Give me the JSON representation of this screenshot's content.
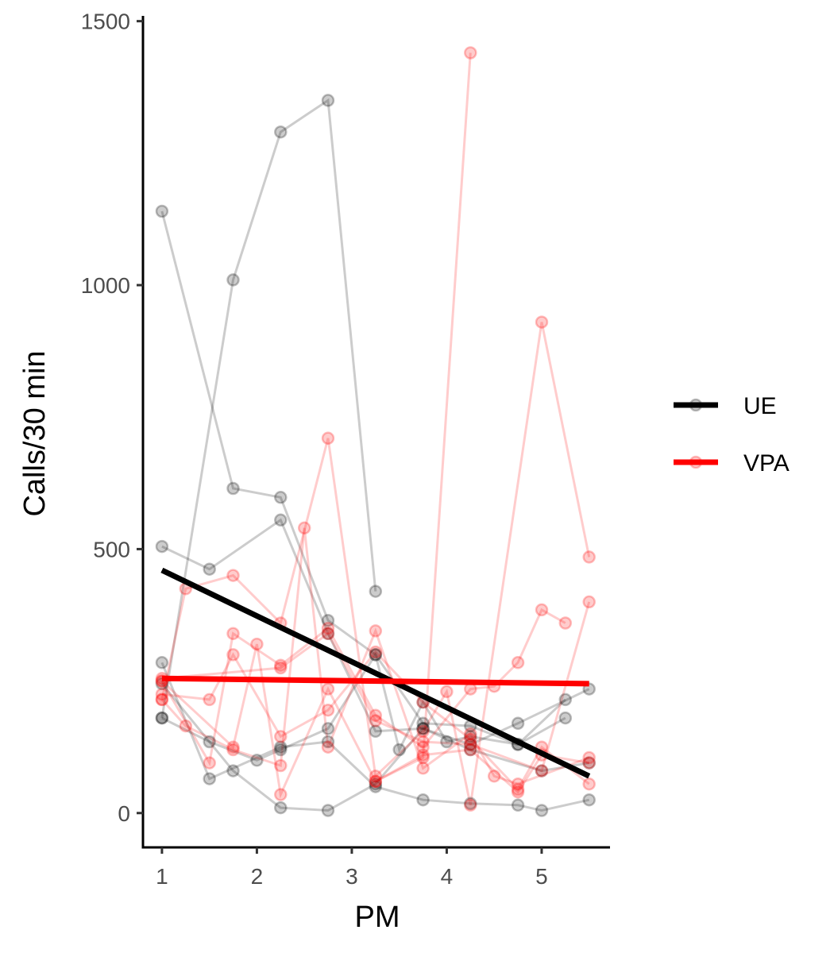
{
  "chart_data": {
    "type": "line",
    "title": "",
    "xlabel": "PM",
    "ylabel": "Calls/30 min",
    "xlim": [
      0.8,
      5.72
    ],
    "ylim": [
      -65,
      1510
    ],
    "xticks": [
      1,
      2,
      3,
      4,
      5
    ],
    "yticks": [
      0,
      500,
      1000,
      1500
    ],
    "grid": false,
    "legend_position": "right",
    "groups": [
      {
        "name": "UE",
        "color": "#000000",
        "fit": {
          "x": [
            1.0,
            5.5
          ],
          "y": [
            460,
            70
          ]
        },
        "individuals": [
          {
            "x": [
              1.0,
              1.75,
              2.25,
              2.75,
              3.25,
              3.75,
              4.25,
              4.75,
              5.25
            ],
            "y": [
              1140,
              615,
              598,
              365,
              300,
              170,
              165,
              130,
              180
            ]
          },
          {
            "x": [
              1.0,
              1.5,
              2.25,
              2.75,
              3.25,
              3.75,
              4.25,
              4.75,
              5.5
            ],
            "y": [
              505,
              462,
              555,
              340,
              155,
              160,
              130,
              170,
              235
            ]
          },
          {
            "x": [
              1.0,
              1.75,
              2.25,
              2.75,
              3.25
            ],
            "y": [
              180,
              1010,
              1290,
              1350,
              420
            ]
          },
          {
            "x": [
              1.0,
              1.5,
              2.25,
              2.75,
              3.25,
              3.75,
              4.25,
              4.75,
              5.0,
              5.5
            ],
            "y": [
              285,
              65,
              125,
              135,
              50,
              25,
              18,
              15,
              5,
              25
            ]
          },
          {
            "x": [
              1.0,
              1.75,
              2.25,
              2.75,
              3.25,
              3.75,
              4.25,
              5.0,
              5.5
            ],
            "y": [
              245,
              80,
              10,
              5,
              55,
              160,
              120,
              80,
              95
            ]
          },
          {
            "x": [
              1.0,
              1.5,
              2.0,
              2.25,
              2.75,
              3.25,
              3.5,
              3.75,
              4.0,
              4.25,
              4.75,
              5.25
            ],
            "y": [
              180,
              135,
              100,
              120,
              160,
              300,
              120,
              210,
              135,
              145,
              130,
              215
            ]
          }
        ]
      },
      {
        "name": "VPA",
        "color": "#ff0000",
        "fit": {
          "x": [
            1.0,
            5.5
          ],
          "y": [
            255,
            245
          ]
        },
        "individuals": [
          {
            "x": [
              1.0,
              1.25,
              1.75,
              2.25,
              2.75,
              3.25,
              3.75,
              4.0,
              4.25,
              5.0,
              5.5
            ],
            "y": [
              215,
              425,
              450,
              360,
              710,
              70,
              155,
              230,
              15,
              930,
              485
            ]
          },
          {
            "x": [
              1.0,
              1.5,
              1.75,
              2.25,
              2.75,
              3.25,
              3.75,
              4.25,
              4.5,
              4.75,
              5.0,
              5.25
            ],
            "y": [
              250,
              95,
              340,
              280,
              350,
              185,
              125,
              235,
              240,
              285,
              385,
              360
            ]
          },
          {
            "x": [
              1.0,
              1.5,
              1.75,
              2.25,
              2.75,
              3.25,
              3.75,
              4.25,
              4.75,
              5.0,
              5.5
            ],
            "y": [
              225,
              215,
              300,
              145,
              195,
              305,
              210,
              140,
              45,
              125,
              55
            ]
          },
          {
            "x": [
              1.0,
              1.25,
              1.75,
              2.25,
              2.5,
              2.75,
              3.25,
              3.75,
              4.25,
              4.5,
              4.75,
              5.5
            ],
            "y": [
              215,
              165,
              120,
              90,
              540,
              125,
              345,
              85,
              150,
              70,
              55,
              105
            ]
          },
          {
            "x": [
              1.0,
              1.75,
              2.0,
              2.25,
              2.75,
              3.25,
              3.75,
              4.25,
              4.75,
              5.0,
              5.5
            ],
            "y": [
              250,
              125,
              320,
              35,
              235,
              60,
              110,
              120,
              40,
              110,
              95
            ]
          },
          {
            "x": [
              1.0,
              2.25,
              2.75,
              3.25,
              3.75,
              4.25,
              5.0,
              5.5
            ],
            "y": [
              255,
              275,
              340,
              175,
              135,
              130,
              80,
              400
            ]
          },
          {
            "x": [
              3.25,
              3.75,
              4.25
            ],
            "y": [
              60,
              105,
              1440
            ]
          }
        ]
      }
    ]
  }
}
